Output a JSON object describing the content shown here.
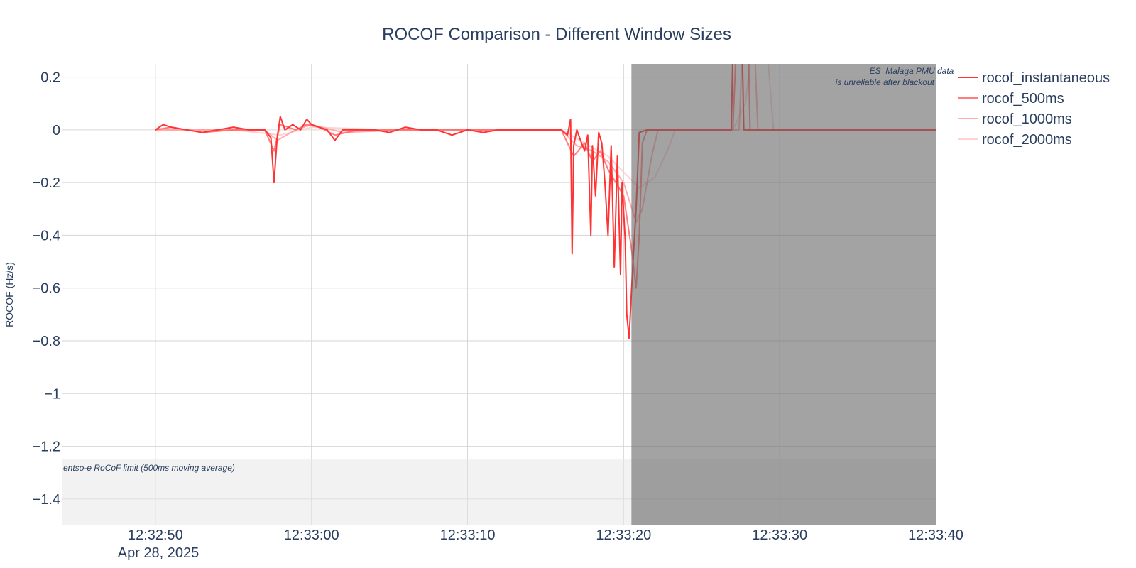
{
  "chart_data": {
    "type": "line",
    "title": "ROCOF Comparison - Different Window Sizes",
    "xlabel": "",
    "ylabel": "ROCOF (Hz/s)",
    "x_axis": {
      "type": "time",
      "date": "Apr 28, 2025",
      "range": [
        "12:32:44.0",
        "12:33:40.0"
      ],
      "ticks": [
        "12:32:50",
        "12:33:00",
        "12:33:10",
        "12:33:20",
        "12:33:30",
        "12:33:40"
      ]
    },
    "y_axis": {
      "range": [
        -1.5,
        0.25
      ],
      "ticks": [
        0.2,
        0,
        -0.2,
        -0.4,
        -0.6,
        -0.8,
        -1,
        -1.2,
        -1.4
      ],
      "tick_labels": [
        "0.2",
        "0",
        "−0.2",
        "−0.4",
        "−0.6",
        "−0.8",
        "−1",
        "−1.2",
        "−1.4"
      ]
    },
    "grid": true,
    "legend": "top-right",
    "series": [
      {
        "name": "rocof_instantaneous",
        "color": "#ff3333",
        "opacity": 1.0,
        "points": [
          [
            "12:32:50.0",
            0.0
          ],
          [
            "12:32:50.5",
            0.02
          ],
          [
            "12:32:51.0",
            0.01
          ],
          [
            "12:32:52.0",
            0.0
          ],
          [
            "12:32:53.0",
            -0.01
          ],
          [
            "12:32:54.0",
            0.0
          ],
          [
            "12:32:55.0",
            0.01
          ],
          [
            "12:32:56.0",
            0.0
          ],
          [
            "12:32:57.0",
            0.0
          ],
          [
            "12:32:57.4",
            -0.03
          ],
          [
            "12:32:57.6",
            -0.2
          ],
          [
            "12:32:57.8",
            -0.03
          ],
          [
            "12:32:58.0",
            0.05
          ],
          [
            "12:32:58.3",
            0.0
          ],
          [
            "12:32:58.8",
            0.02
          ],
          [
            "12:32:59.3",
            0.0
          ],
          [
            "12:32:59.7",
            0.04
          ],
          [
            "12:33:00.0",
            0.02
          ],
          [
            "12:33:00.5",
            0.01
          ],
          [
            "12:33:01.0",
            0.0
          ],
          [
            "12:33:01.5",
            -0.04
          ],
          [
            "12:33:02.0",
            0.0
          ],
          [
            "12:33:03.0",
            0.0
          ],
          [
            "12:33:04.0",
            0.0
          ],
          [
            "12:33:05.0",
            -0.01
          ],
          [
            "12:33:06.0",
            0.01
          ],
          [
            "12:33:07.0",
            0.0
          ],
          [
            "12:33:08.0",
            0.0
          ],
          [
            "12:33:09.0",
            -0.02
          ],
          [
            "12:33:10.0",
            0.0
          ],
          [
            "12:33:11.0",
            -0.01
          ],
          [
            "12:33:12.0",
            0.0
          ],
          [
            "12:33:13.0",
            0.0
          ],
          [
            "12:33:14.0",
            0.0
          ],
          [
            "12:33:15.0",
            0.0
          ],
          [
            "12:33:16.0",
            0.0
          ],
          [
            "12:33:16.4",
            -0.02
          ],
          [
            "12:33:16.6",
            0.04
          ],
          [
            "12:33:16.7",
            -0.47
          ],
          [
            "12:33:16.8",
            -0.06
          ],
          [
            "12:33:17.0",
            0.0
          ],
          [
            "12:33:17.3",
            -0.05
          ],
          [
            "12:33:17.5",
            -0.08
          ],
          [
            "12:33:17.7",
            -0.02
          ],
          [
            "12:33:17.9",
            -0.4
          ],
          [
            "12:33:18.0",
            -0.06
          ],
          [
            "12:33:18.2",
            -0.25
          ],
          [
            "12:33:18.4",
            -0.01
          ],
          [
            "12:33:18.6",
            -0.05
          ],
          [
            "12:33:18.8",
            -0.2
          ],
          [
            "12:33:19.0",
            -0.4
          ],
          [
            "12:33:19.2",
            -0.06
          ],
          [
            "12:33:19.4",
            -0.52
          ],
          [
            "12:33:19.6",
            -0.1
          ],
          [
            "12:33:19.8",
            -0.55
          ],
          [
            "12:33:19.9",
            -0.2
          ],
          [
            "12:33:20.1",
            -0.42
          ],
          [
            "12:33:20.2",
            -0.7
          ],
          [
            "12:33:20.35",
            -0.79
          ],
          [
            "12:33:20.6",
            -0.5
          ],
          [
            "12:33:20.8",
            -0.3
          ],
          [
            "12:33:21.0",
            -0.01
          ],
          [
            "12:33:21.5",
            0.0
          ],
          [
            "12:33:24.0",
            0.0
          ],
          [
            "12:33:26.9",
            0.0
          ],
          [
            "12:33:27.0",
            0.3
          ],
          [
            "12:33:27.6",
            0.3
          ],
          [
            "12:33:27.7",
            0.0
          ],
          [
            "12:33:30.0",
            0.0
          ],
          [
            "12:33:35.0",
            0.0
          ],
          [
            "12:33:40.0",
            0.0
          ]
        ]
      },
      {
        "name": "rocof_500ms",
        "color": "#ff6666",
        "opacity": 0.85,
        "points": [
          [
            "12:32:50.0",
            0.0
          ],
          [
            "12:32:51.0",
            0.01
          ],
          [
            "12:32:53.0",
            -0.01
          ],
          [
            "12:32:55.0",
            0.0
          ],
          [
            "12:32:57.0",
            0.0
          ],
          [
            "12:32:57.6",
            -0.08
          ],
          [
            "12:32:58.0",
            0.02
          ],
          [
            "12:32:59.0",
            0.0
          ],
          [
            "12:32:59.7",
            0.02
          ],
          [
            "12:33:00.5",
            0.01
          ],
          [
            "12:33:01.5",
            -0.02
          ],
          [
            "12:33:03.0",
            0.0
          ],
          [
            "12:33:06.0",
            0.0
          ],
          [
            "12:33:10.0",
            0.0
          ],
          [
            "12:33:14.0",
            0.0
          ],
          [
            "12:33:16.0",
            0.0
          ],
          [
            "12:33:16.8",
            -0.1
          ],
          [
            "12:33:17.5",
            -0.05
          ],
          [
            "12:33:18.0",
            -0.12
          ],
          [
            "12:33:18.5",
            -0.08
          ],
          [
            "12:33:19.0",
            -0.15
          ],
          [
            "12:33:19.5",
            -0.2
          ],
          [
            "12:33:20.0",
            -0.25
          ],
          [
            "12:33:20.5",
            -0.45
          ],
          [
            "12:33:20.8",
            -0.6
          ],
          [
            "12:33:21.0",
            -0.4
          ],
          [
            "12:33:21.2",
            -0.05
          ],
          [
            "12:33:21.5",
            0.0
          ],
          [
            "12:33:24.0",
            0.0
          ],
          [
            "12:33:27.0",
            0.0
          ],
          [
            "12:33:27.2",
            0.3
          ],
          [
            "12:33:28.0",
            0.3
          ],
          [
            "12:33:28.1",
            0.0
          ],
          [
            "12:33:32.0",
            0.0
          ],
          [
            "12:33:40.0",
            0.0
          ]
        ]
      },
      {
        "name": "rocof_1000ms",
        "color": "#ff9999",
        "opacity": 0.8,
        "points": [
          [
            "12:32:50.0",
            0.0
          ],
          [
            "12:32:53.0",
            0.0
          ],
          [
            "12:32:57.0",
            0.0
          ],
          [
            "12:32:57.8",
            -0.04
          ],
          [
            "12:32:59.0",
            0.0
          ],
          [
            "12:33:00.0",
            0.02
          ],
          [
            "12:33:02.0",
            -0.01
          ],
          [
            "12:33:06.0",
            0.0
          ],
          [
            "12:33:12.0",
            0.0
          ],
          [
            "12:33:16.0",
            0.0
          ],
          [
            "12:33:17.0",
            -0.06
          ],
          [
            "12:33:18.0",
            -0.08
          ],
          [
            "12:33:19.0",
            -0.12
          ],
          [
            "12:33:20.0",
            -0.2
          ],
          [
            "12:33:20.8",
            -0.35
          ],
          [
            "12:33:21.2",
            -0.3
          ],
          [
            "12:33:21.8",
            -0.1
          ],
          [
            "12:33:22.2",
            0.0
          ],
          [
            "12:33:25.0",
            0.0
          ],
          [
            "12:33:27.4",
            0.0
          ],
          [
            "12:33:27.6",
            0.3
          ],
          [
            "12:33:28.4",
            0.3
          ],
          [
            "12:33:28.6",
            0.0
          ],
          [
            "12:33:33.0",
            0.0
          ],
          [
            "12:33:40.0",
            0.0
          ]
        ]
      },
      {
        "name": "rocof_2000ms",
        "color": "#ffcccc",
        "opacity": 0.9,
        "points": [
          [
            "12:32:50.0",
            0.0
          ],
          [
            "12:32:55.0",
            0.0
          ],
          [
            "12:32:58.0",
            -0.02
          ],
          [
            "12:33:00.0",
            0.01
          ],
          [
            "12:33:05.0",
            0.0
          ],
          [
            "12:33:12.0",
            0.0
          ],
          [
            "12:33:16.0",
            0.0
          ],
          [
            "12:33:17.5",
            -0.05
          ],
          [
            "12:33:19.0",
            -0.1
          ],
          [
            "12:33:20.0",
            -0.16
          ],
          [
            "12:33:21.0",
            -0.22
          ],
          [
            "12:33:22.0",
            -0.18
          ],
          [
            "12:33:22.8",
            -0.08
          ],
          [
            "12:33:23.3",
            0.0
          ],
          [
            "12:33:27.0",
            0.0
          ],
          [
            "12:33:27.8",
            0.1
          ],
          [
            "12:33:28.2",
            0.3
          ],
          [
            "12:33:29.2",
            0.3
          ],
          [
            "12:33:29.6",
            0.0
          ],
          [
            "12:33:40.0",
            0.0
          ]
        ]
      }
    ],
    "shapes": [
      {
        "kind": "band",
        "label": "entso-e RoCoF limit (500ms moving average)",
        "y_range": [
          -1.5,
          -1.25
        ],
        "color": "#e6e6e6",
        "opacity": 0.5
      },
      {
        "kind": "region",
        "label_line1": "ES_Malaga PMU data",
        "label_line2": "is unreliable after blackout",
        "x_range": [
          "12:33:20.5",
          "12:33:40.0"
        ],
        "color": "#666666",
        "opacity": 0.6
      }
    ]
  }
}
